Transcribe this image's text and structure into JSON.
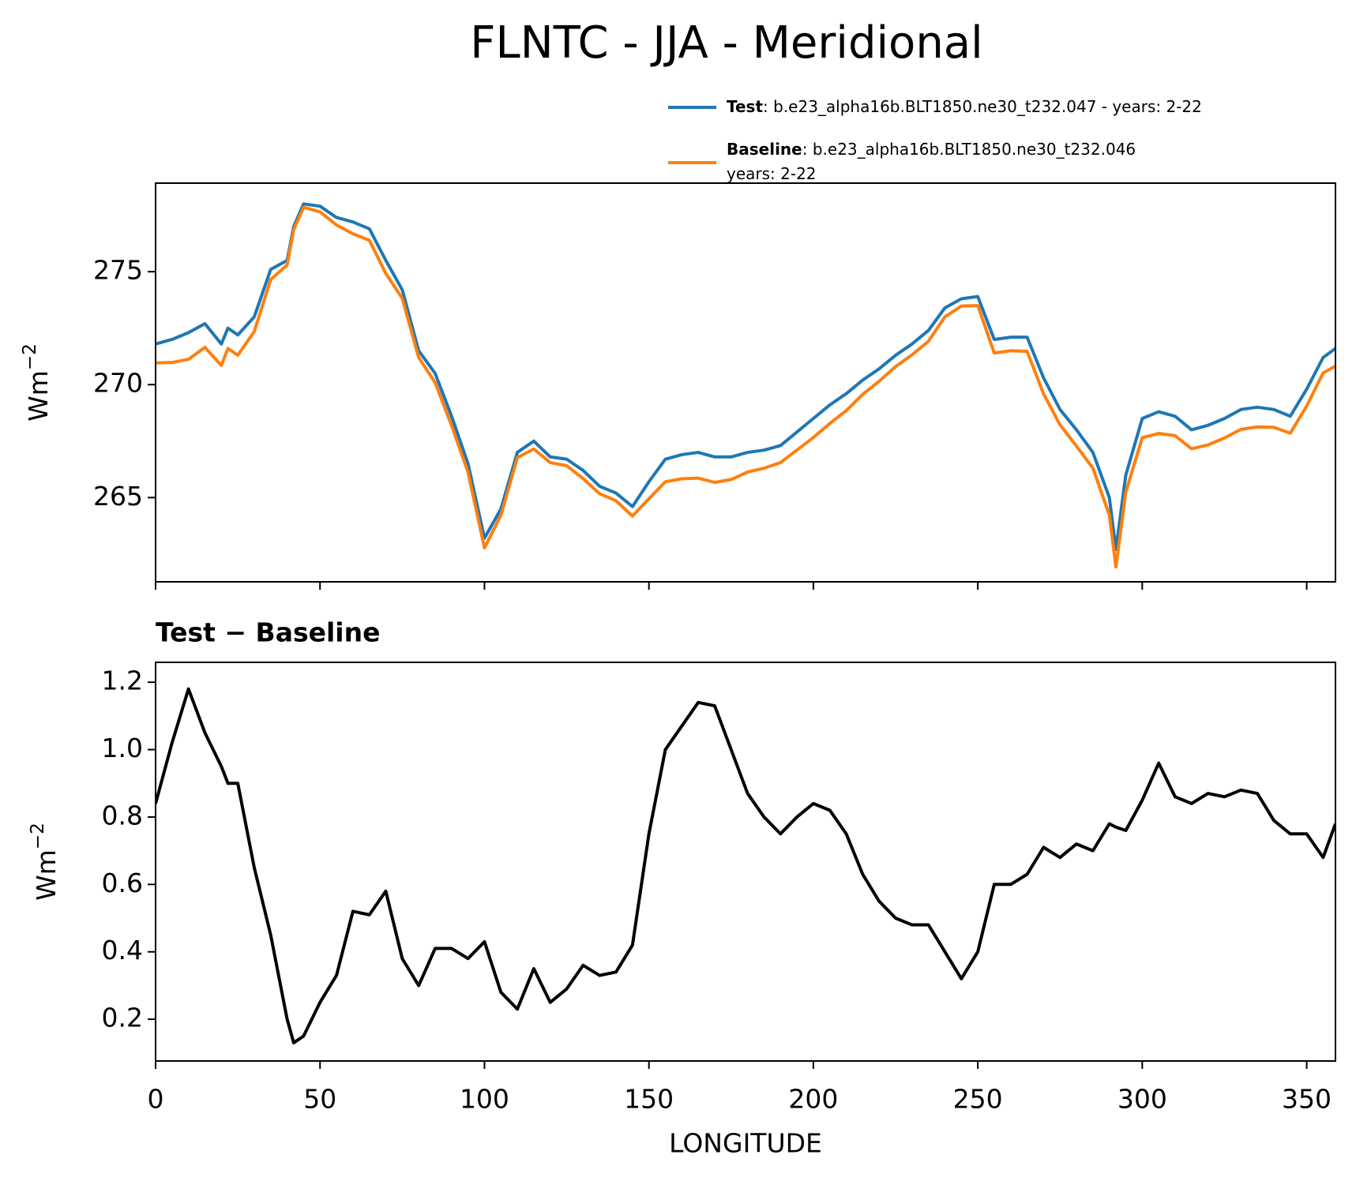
{
  "chart_data": [
    {
      "type": "line",
      "title": "FLNTC - JJA - Meridional",
      "ylabel": {
        "base": "Wm",
        "sup": "−2"
      },
      "legend": true,
      "x": [
        0,
        5,
        10,
        15,
        20,
        22,
        25,
        30,
        35,
        40,
        42,
        45,
        50,
        55,
        60,
        65,
        70,
        75,
        80,
        85,
        90,
        95,
        100,
        105,
        110,
        115,
        120,
        125,
        130,
        135,
        140,
        145,
        150,
        155,
        160,
        165,
        170,
        175,
        180,
        185,
        190,
        195,
        200,
        205,
        210,
        215,
        220,
        225,
        230,
        235,
        240,
        245,
        250,
        255,
        260,
        265,
        270,
        275,
        280,
        285,
        290,
        292,
        295,
        300,
        305,
        310,
        315,
        320,
        325,
        330,
        335,
        340,
        345,
        350,
        355,
        358.75
      ],
      "series": [
        {
          "name": "Test",
          "description": [
            ": b.e23_alpha16b.BLT1850.ne30_t232.047 - years: 2-22"
          ],
          "color": "#1f77b4",
          "values": [
            271.8,
            272.0,
            272.3,
            272.7,
            271.8,
            272.5,
            272.2,
            273.0,
            275.1,
            275.5,
            277.0,
            278.0,
            277.9,
            277.4,
            277.2,
            276.9,
            275.5,
            274.2,
            271.5,
            270.5,
            268.6,
            266.5,
            263.2,
            264.5,
            267.0,
            267.5,
            266.8,
            266.7,
            266.2,
            265.5,
            265.2,
            264.6,
            265.7,
            266.7,
            266.9,
            267.0,
            266.8,
            266.8,
            267.0,
            267.1,
            267.3,
            267.9,
            268.5,
            269.1,
            269.6,
            270.2,
            270.7,
            271.3,
            271.8,
            272.4,
            273.4,
            273.8,
            273.9,
            272.0,
            272.1,
            272.1,
            270.3,
            268.9,
            268.0,
            267.0,
            265.0,
            262.7,
            266.0,
            268.5,
            268.8,
            268.6,
            268.0,
            268.2,
            268.5,
            268.9,
            269.0,
            268.9,
            268.6,
            269.8,
            271.2,
            271.6
          ]
        },
        {
          "name": "Baseline",
          "description": [
            ": b.e23_alpha16b.BLT1850.ne30_t232.046",
            "years: 2-22"
          ],
          "color": "#ff7f0e",
          "values": [
            270.96,
            270.98,
            271.12,
            271.65,
            270.85,
            271.6,
            271.3,
            272.35,
            274.65,
            275.3,
            276.87,
            277.85,
            277.65,
            277.07,
            276.68,
            276.39,
            274.92,
            273.82,
            271.2,
            270.09,
            268.19,
            266.12,
            262.77,
            264.22,
            266.77,
            267.15,
            266.55,
            266.41,
            265.84,
            265.17,
            264.86,
            264.18,
            264.95,
            265.7,
            265.83,
            265.86,
            265.67,
            265.8,
            266.13,
            266.3,
            266.55,
            267.1,
            267.66,
            268.28,
            268.85,
            269.57,
            270.15,
            270.8,
            271.32,
            271.92,
            273.0,
            273.48,
            273.5,
            271.4,
            271.5,
            271.47,
            269.59,
            268.22,
            267.28,
            266.3,
            264.22,
            261.93,
            265.24,
            267.65,
            267.84,
            267.74,
            267.16,
            267.33,
            267.64,
            268.02,
            268.13,
            268.11,
            267.85,
            269.05,
            270.52,
            270.82
          ]
        }
      ],
      "xlim": [
        0,
        358.75
      ],
      "xticks": [
        0,
        50,
        100,
        150,
        200,
        250,
        300,
        350
      ],
      "xtick_labels": false,
      "ylim": [
        261.27,
        278.92
      ],
      "yticks": [
        265,
        270,
        275
      ]
    },
    {
      "type": "line",
      "title": "Test − Baseline",
      "ylabel": {
        "base": "Wm",
        "sup": "−2"
      },
      "xlabel": "LONGITUDE",
      "x": [
        0,
        5,
        10,
        15,
        20,
        22,
        25,
        30,
        35,
        40,
        42,
        45,
        50,
        55,
        60,
        65,
        70,
        75,
        80,
        85,
        90,
        95,
        100,
        105,
        110,
        115,
        120,
        125,
        130,
        135,
        140,
        145,
        150,
        155,
        160,
        165,
        170,
        175,
        180,
        185,
        190,
        195,
        200,
        205,
        210,
        215,
        220,
        225,
        230,
        235,
        240,
        245,
        250,
        255,
        260,
        265,
        270,
        275,
        280,
        285,
        290,
        292,
        295,
        300,
        305,
        310,
        315,
        320,
        325,
        330,
        335,
        340,
        345,
        350,
        355,
        358.75
      ],
      "series": [
        {
          "color": "#000000",
          "values": [
            0.84,
            1.02,
            1.18,
            1.05,
            0.95,
            0.9,
            0.9,
            0.65,
            0.45,
            0.2,
            0.13,
            0.15,
            0.25,
            0.33,
            0.52,
            0.51,
            0.58,
            0.38,
            0.3,
            0.41,
            0.41,
            0.38,
            0.43,
            0.28,
            0.23,
            0.35,
            0.25,
            0.29,
            0.36,
            0.33,
            0.34,
            0.42,
            0.75,
            1.0,
            1.07,
            1.14,
            1.13,
            1.0,
            0.87,
            0.8,
            0.75,
            0.8,
            0.84,
            0.82,
            0.75,
            0.63,
            0.55,
            0.5,
            0.48,
            0.48,
            0.4,
            0.32,
            0.4,
            0.6,
            0.6,
            0.63,
            0.71,
            0.68,
            0.72,
            0.7,
            0.78,
            0.77,
            0.76,
            0.85,
            0.96,
            0.86,
            0.84,
            0.87,
            0.86,
            0.88,
            0.87,
            0.79,
            0.75,
            0.75,
            0.68,
            0.78
          ]
        }
      ],
      "xlim": [
        0,
        358.75
      ],
      "xticks": [
        0,
        50,
        100,
        150,
        200,
        250,
        300,
        350
      ],
      "xtick_labels": true,
      "ylim": [
        0.076,
        1.259
      ],
      "yticks": [
        0.2,
        0.4,
        0.6,
        {
          "value": 0.8,
          "label": "0.8"
        },
        {
          "value": 1,
          "label": "1.0"
        },
        1.2
      ]
    }
  ]
}
